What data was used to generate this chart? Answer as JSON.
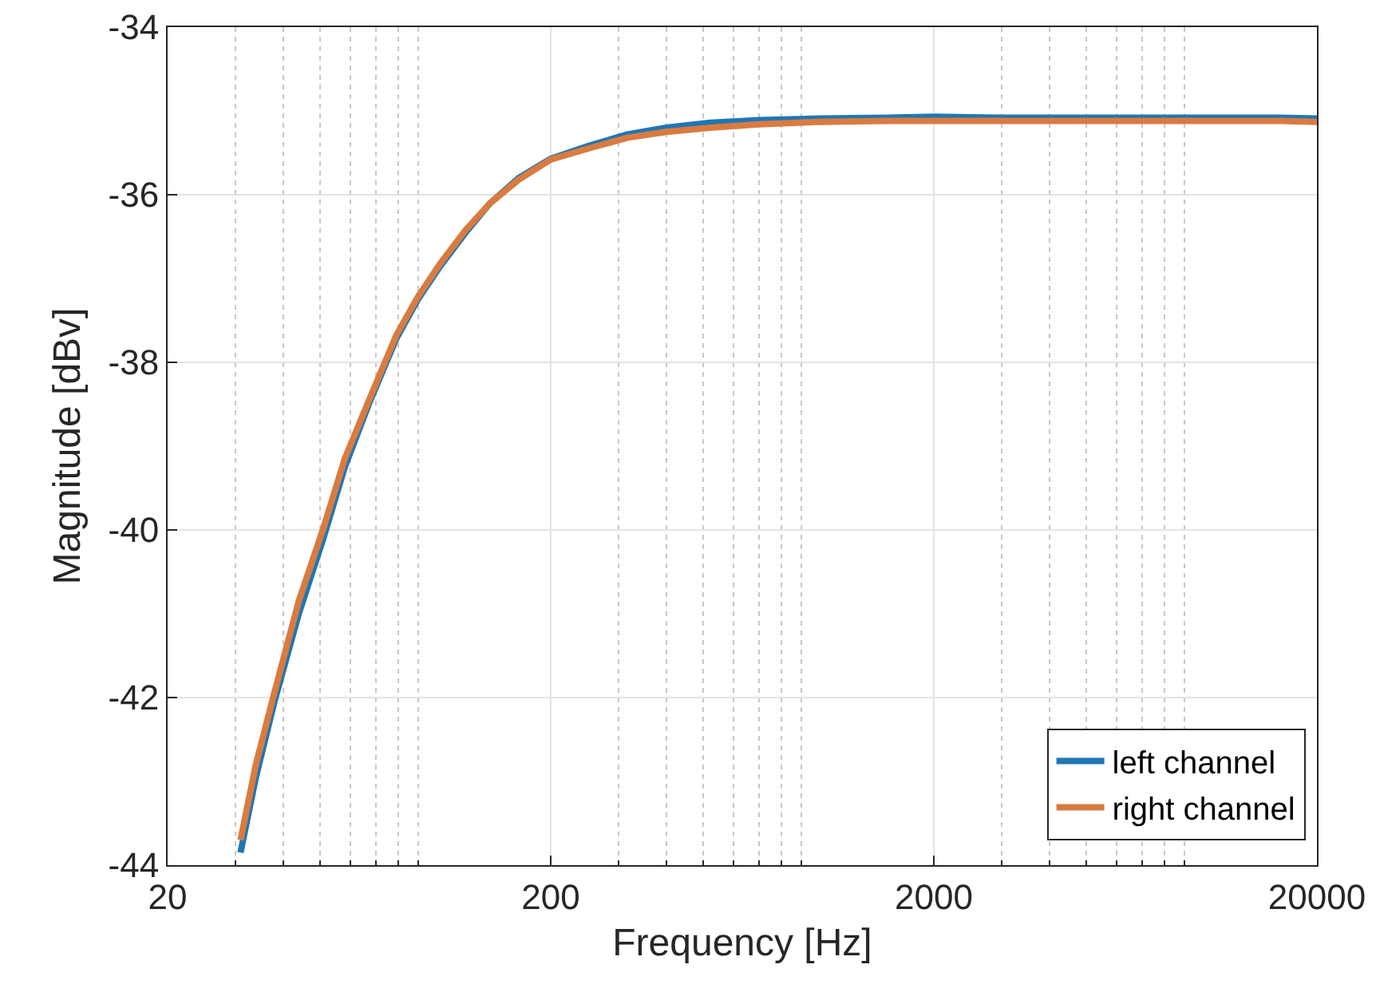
{
  "chart_data": {
    "type": "line",
    "xlabel": "Frequency [Hz]",
    "ylabel": "Magnitude [dBv]",
    "log": "x",
    "xlim": [
      20,
      20000
    ],
    "xticks": [
      20,
      200,
      2000,
      20000
    ],
    "ylim": [
      -44,
      -34
    ],
    "yticks": [
      -44,
      -42,
      -40,
      -38,
      -36,
      -34
    ],
    "grid": true,
    "legend": "bottom right",
    "line_style": "solid",
    "marker": "none",
    "series": [
      {
        "name": "left channel",
        "color": "#1f77b4",
        "x": [
          31,
          34,
          38,
          44,
          51,
          58,
          67,
          79,
          90,
          103,
          120,
          139,
          165,
          200,
          250,
          317,
          400,
          522,
          700,
          1000,
          1500,
          2000,
          3000,
          5000,
          8000,
          12000,
          16000,
          20000
        ],
        "values": [
          -43.85,
          -42.95,
          -42.05,
          -41.0,
          -40.1,
          -39.25,
          -38.5,
          -37.72,
          -37.25,
          -36.85,
          -36.45,
          -36.1,
          -35.8,
          -35.57,
          -35.42,
          -35.28,
          -35.2,
          -35.14,
          -35.11,
          -35.09,
          -35.08,
          -35.07,
          -35.08,
          -35.08,
          -35.08,
          -35.08,
          -35.08,
          -35.09
        ]
      },
      {
        "name": "right channel",
        "color": "#d97b40",
        "x": [
          31,
          34,
          38,
          44,
          51,
          58,
          67,
          79,
          90,
          103,
          120,
          139,
          165,
          200,
          250,
          317,
          400,
          522,
          700,
          1000,
          1500,
          2000,
          3000,
          5000,
          8000,
          12000,
          16000,
          20000
        ],
        "values": [
          -43.7,
          -42.8,
          -41.94,
          -40.85,
          -39.98,
          -39.15,
          -38.46,
          -37.68,
          -37.22,
          -36.82,
          -36.42,
          -36.1,
          -35.82,
          -35.58,
          -35.45,
          -35.32,
          -35.25,
          -35.2,
          -35.16,
          -35.13,
          -35.12,
          -35.12,
          -35.12,
          -35.12,
          -35.12,
          -35.12,
          -35.12,
          -35.13
        ]
      }
    ]
  }
}
